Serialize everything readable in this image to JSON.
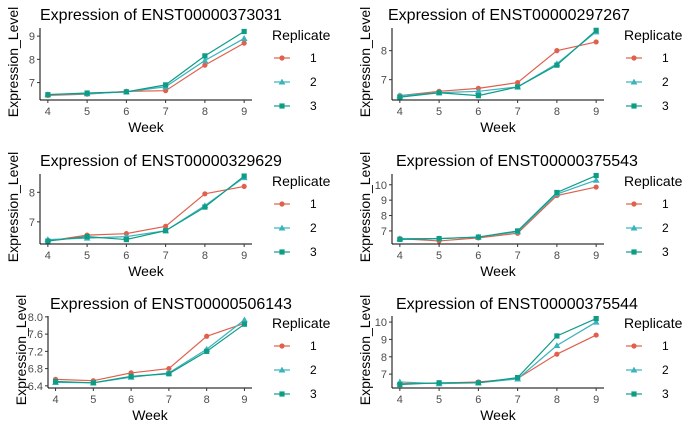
{
  "legend": {
    "title": "Replicate",
    "entries": [
      "1",
      "2",
      "3"
    ]
  },
  "colors": {
    "replicate_1": "#E0604D",
    "replicate_2": "#39B3BC",
    "replicate_3": "#0E9C87"
  },
  "chart_data": [
    {
      "type": "line",
      "title": "Expression of ENST00000373031",
      "xlabel": "Week",
      "ylabel": "Expression_Level",
      "x": [
        4,
        5,
        6,
        7,
        8,
        9
      ],
      "xlim": [
        3.8,
        9.2
      ],
      "ylim": [
        6.25,
        9.35
      ],
      "yticks": [
        7,
        8,
        9
      ],
      "ytick_labels": [
        "7",
        "8",
        "9"
      ],
      "grid": false,
      "legend_position": "right",
      "series": [
        {
          "name": "1",
          "values": [
            6.45,
            6.5,
            6.62,
            6.65,
            7.75,
            8.7
          ]
        },
        {
          "name": "2",
          "values": [
            6.48,
            6.52,
            6.6,
            6.82,
            7.95,
            8.9
          ]
        },
        {
          "name": "3",
          "values": [
            6.48,
            6.55,
            6.6,
            6.9,
            8.15,
            9.2
          ]
        }
      ]
    },
    {
      "type": "line",
      "title": "Expression of ENST00000297267",
      "xlabel": "Week",
      "ylabel": "Expression_Level",
      "x": [
        4,
        5,
        6,
        7,
        8,
        9
      ],
      "xlim": [
        3.8,
        9.2
      ],
      "ylim": [
        6.3,
        8.78
      ],
      "yticks": [
        7,
        8
      ],
      "ytick_labels": [
        "7",
        "8"
      ],
      "grid": false,
      "legend_position": "right",
      "series": [
        {
          "name": "1",
          "values": [
            6.45,
            6.6,
            6.7,
            6.9,
            8.0,
            8.3
          ]
        },
        {
          "name": "2",
          "values": [
            6.45,
            6.55,
            6.6,
            6.75,
            7.55,
            8.65
          ]
        },
        {
          "name": "3",
          "values": [
            6.4,
            6.55,
            6.45,
            6.75,
            7.5,
            8.7
          ]
        }
      ]
    },
    {
      "type": "line",
      "title": "Expression of ENST00000329629",
      "xlabel": "Week",
      "ylabel": "Expression_Level",
      "x": [
        4,
        5,
        6,
        7,
        8,
        9
      ],
      "xlim": [
        3.8,
        9.2
      ],
      "ylim": [
        6.25,
        8.62
      ],
      "yticks": [
        7,
        8
      ],
      "ytick_labels": [
        "7",
        "8"
      ],
      "grid": false,
      "legend_position": "right",
      "series": [
        {
          "name": "1",
          "values": [
            6.35,
            6.55,
            6.6,
            6.85,
            7.95,
            8.2
          ]
        },
        {
          "name": "2",
          "values": [
            6.4,
            6.45,
            6.5,
            6.7,
            7.55,
            8.5
          ]
        },
        {
          "name": "3",
          "values": [
            6.35,
            6.5,
            6.4,
            6.7,
            7.5,
            8.55
          ]
        }
      ]
    },
    {
      "type": "line",
      "title": "Expression of ENST00000375543",
      "xlabel": "Week",
      "ylabel": "Expression_Level",
      "x": [
        4,
        5,
        6,
        7,
        8,
        9
      ],
      "xlim": [
        3.8,
        9.2
      ],
      "ylim": [
        6.15,
        10.7
      ],
      "yticks": [
        7,
        8,
        9,
        10
      ],
      "ytick_labels": [
        "7",
        "8",
        "9",
        "10"
      ],
      "grid": false,
      "legend_position": "right",
      "series": [
        {
          "name": "1",
          "values": [
            6.5,
            6.35,
            6.55,
            6.85,
            9.3,
            9.85
          ]
        },
        {
          "name": "2",
          "values": [
            6.5,
            6.5,
            6.6,
            6.95,
            9.4,
            10.3
          ]
        },
        {
          "name": "3",
          "values": [
            6.45,
            6.5,
            6.6,
            7.0,
            9.5,
            10.6
          ]
        }
      ]
    },
    {
      "type": "line",
      "title": "Expression of ENST00000506143",
      "xlabel": "Week",
      "ylabel": "Expression_Level",
      "x": [
        4,
        5,
        6,
        7,
        8,
        9
      ],
      "xlim": [
        3.8,
        9.2
      ],
      "ylim": [
        6.35,
        8.02
      ],
      "yticks": [
        6.4,
        6.8,
        7.2,
        7.6,
        8.0
      ],
      "ytick_labels": [
        "6.4",
        "6.8",
        "7.2",
        "7.6",
        "8.0"
      ],
      "grid": false,
      "legend_position": "right",
      "series": [
        {
          "name": "1",
          "values": [
            6.55,
            6.52,
            6.7,
            6.8,
            7.55,
            7.85
          ]
        },
        {
          "name": "2",
          "values": [
            6.48,
            6.47,
            6.6,
            6.7,
            7.25,
            7.93
          ]
        },
        {
          "name": "3",
          "values": [
            6.5,
            6.47,
            6.62,
            6.68,
            7.2,
            7.83
          ]
        }
      ]
    },
    {
      "type": "line",
      "title": "Expression of ENST00000375544",
      "xlabel": "Week",
      "ylabel": "Expression_Level",
      "x": [
        4,
        5,
        6,
        7,
        8,
        9
      ],
      "xlim": [
        3.8,
        9.2
      ],
      "ylim": [
        6.2,
        10.35
      ],
      "yticks": [
        7,
        8,
        9,
        10
      ],
      "ytick_labels": [
        "7",
        "8",
        "9",
        "10"
      ],
      "grid": false,
      "legend_position": "right",
      "series": [
        {
          "name": "1",
          "values": [
            6.45,
            6.48,
            6.55,
            6.75,
            8.15,
            9.25
          ]
        },
        {
          "name": "2",
          "values": [
            6.55,
            6.45,
            6.5,
            6.72,
            8.65,
            10.0
          ]
        },
        {
          "name": "3",
          "values": [
            6.4,
            6.5,
            6.5,
            6.8,
            9.2,
            10.2
          ]
        }
      ]
    }
  ]
}
